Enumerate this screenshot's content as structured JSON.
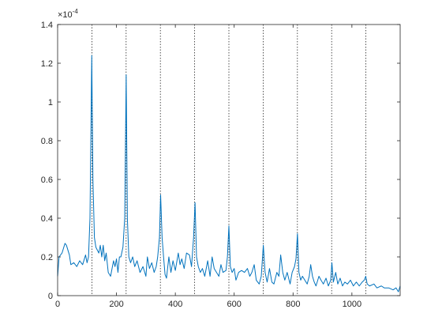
{
  "chart_data": {
    "type": "line",
    "y_multiplier": {
      "base": "×10",
      "exponent": "-4"
    },
    "x": [
      0,
      5,
      15,
      25,
      30,
      40,
      45,
      55,
      65,
      75,
      85,
      95,
      100,
      105,
      110,
      116,
      120,
      125,
      130,
      140,
      145,
      150,
      155,
      160,
      165,
      172,
      180,
      190,
      195,
      200,
      205,
      210,
      215,
      222,
      228,
      233,
      237,
      242,
      248,
      255,
      262,
      270,
      280,
      290,
      300,
      305,
      312,
      320,
      328,
      335,
      340,
      346,
      350,
      355,
      360,
      365,
      370,
      378,
      385,
      392,
      400,
      410,
      416,
      422,
      430,
      438,
      448,
      455,
      462,
      467,
      472,
      478,
      485,
      492,
      500,
      510,
      518,
      525,
      532,
      540,
      548,
      555,
      562,
      572,
      577,
      582,
      587,
      593,
      600,
      606,
      615,
      625,
      635,
      645,
      653,
      660,
      668,
      675,
      685,
      692,
      699,
      705,
      712,
      720,
      728,
      735,
      745,
      752,
      758,
      765,
      772,
      780,
      790,
      797,
      805,
      810,
      815,
      820,
      826,
      832,
      840,
      848,
      855,
      860,
      866,
      872,
      878,
      888,
      895,
      903,
      912,
      920,
      928,
      932,
      937,
      945,
      952,
      960,
      968,
      976,
      985,
      995,
      1005,
      1015,
      1025,
      1035,
      1042,
      1047,
      1052,
      1060,
      1075,
      1085,
      1100,
      1110,
      1125,
      1140,
      1150,
      1158,
      1164
    ],
    "series": [
      {
        "color": "#0072bd",
        "values": [
          0.1,
          0.2,
          0.22,
          0.27,
          0.26,
          0.21,
          0.16,
          0.17,
          0.15,
          0.18,
          0.16,
          0.21,
          0.17,
          0.2,
          0.4,
          1.24,
          0.6,
          0.3,
          0.25,
          0.22,
          0.26,
          0.2,
          0.26,
          0.18,
          0.22,
          0.12,
          0.1,
          0.18,
          0.15,
          0.19,
          0.12,
          0.2,
          0.2,
          0.25,
          0.4,
          1.14,
          0.4,
          0.2,
          0.17,
          0.2,
          0.15,
          0.18,
          0.12,
          0.15,
          0.1,
          0.2,
          0.14,
          0.17,
          0.12,
          0.15,
          0.2,
          0.3,
          0.52,
          0.3,
          0.2,
          0.11,
          0.09,
          0.2,
          0.12,
          0.18,
          0.13,
          0.22,
          0.16,
          0.19,
          0.14,
          0.22,
          0.21,
          0.15,
          0.3,
          0.48,
          0.2,
          0.15,
          0.12,
          0.14,
          0.1,
          0.18,
          0.1,
          0.2,
          0.14,
          0.12,
          0.1,
          0.16,
          0.12,
          0.13,
          0.2,
          0.36,
          0.15,
          0.12,
          0.14,
          0.08,
          0.12,
          0.13,
          0.12,
          0.14,
          0.1,
          0.12,
          0.16,
          0.08,
          0.06,
          0.1,
          0.26,
          0.12,
          0.07,
          0.14,
          0.07,
          0.06,
          0.12,
          0.1,
          0.21,
          0.12,
          0.08,
          0.12,
          0.06,
          0.12,
          0.15,
          0.19,
          0.32,
          0.12,
          0.08,
          0.1,
          0.08,
          0.06,
          0.1,
          0.16,
          0.1,
          0.07,
          0.05,
          0.1,
          0.08,
          0.06,
          0.09,
          0.05,
          0.08,
          0.17,
          0.07,
          0.12,
          0.06,
          0.09,
          0.05,
          0.07,
          0.06,
          0.08,
          0.05,
          0.07,
          0.05,
          0.07,
          0.08,
          0.1,
          0.06,
          0.05,
          0.06,
          0.04,
          0.05,
          0.04,
          0.04,
          0.03,
          0.04,
          0.02,
          0.05
        ]
      }
    ],
    "vlines": [
      116.4,
      232.8,
      349.2,
      465.6,
      582,
      698.4,
      814.8,
      931.2,
      1047.6
    ],
    "vline_color": "#262626",
    "vline_style": "dotted",
    "xlim": [
      0,
      1164
    ],
    "ylim": [
      0,
      1.4
    ],
    "xticks": [
      0,
      200,
      400,
      600,
      800,
      1000
    ],
    "yticks": [
      0,
      0.2,
      0.4,
      0.6,
      0.8,
      1,
      1.2,
      1.4
    ],
    "grid": false
  }
}
